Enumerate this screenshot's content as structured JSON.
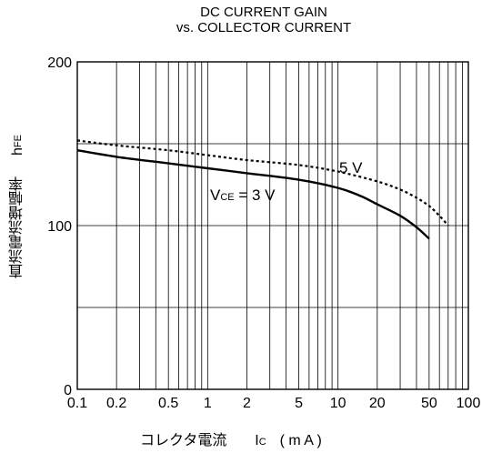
{
  "chart_data": {
    "type": "line",
    "title_line1": "DC CURRENT GAIN",
    "title_line2": "vs. COLLECTOR CURRENT",
    "xlabel": "コレクタ電流",
    "xlabel_symbol": "I",
    "xlabel_symbol_sub": "C",
    "xlabel_unit": "( m A )",
    "ylabel": "直流電流増幅率",
    "ylabel_symbol": "h",
    "ylabel_symbol_sub": "FE",
    "x_scale": "log",
    "xlim": [
      0.1,
      100
    ],
    "ylim": [
      0,
      200
    ],
    "x_ticks": [
      0.1,
      0.2,
      0.5,
      1,
      2,
      5,
      10,
      20,
      50,
      100
    ],
    "x_tick_labels": [
      "0.1",
      "0.2",
      "0.5",
      "1",
      "2",
      "5",
      "10",
      "20",
      "50",
      "100"
    ],
    "y_ticks": [
      0,
      100,
      200
    ],
    "y_tick_labels": [
      "0",
      "100",
      "200"
    ],
    "grid": true,
    "series": [
      {
        "name": "5 V",
        "style": "dotted",
        "x": [
          0.1,
          0.2,
          0.5,
          1,
          2,
          5,
          10,
          20,
          30,
          40,
          50,
          60,
          70
        ],
        "y": [
          152,
          149,
          146,
          143,
          140,
          137,
          133,
          127,
          122,
          117,
          112,
          106,
          100
        ]
      },
      {
        "name": "VCE = 3 V",
        "label_main": "V",
        "label_sub": "CE",
        "label_rest": "= 3 V",
        "style": "solid",
        "x": [
          0.1,
          0.2,
          0.5,
          1,
          2,
          5,
          10,
          15,
          20,
          30,
          40,
          50
        ],
        "y": [
          146,
          142,
          138,
          135,
          132,
          128,
          123,
          118,
          113,
          106,
          99,
          92
        ]
      }
    ]
  },
  "colors": {
    "line": "#000000",
    "grid": "#000000",
    "background": "#ffffff"
  }
}
